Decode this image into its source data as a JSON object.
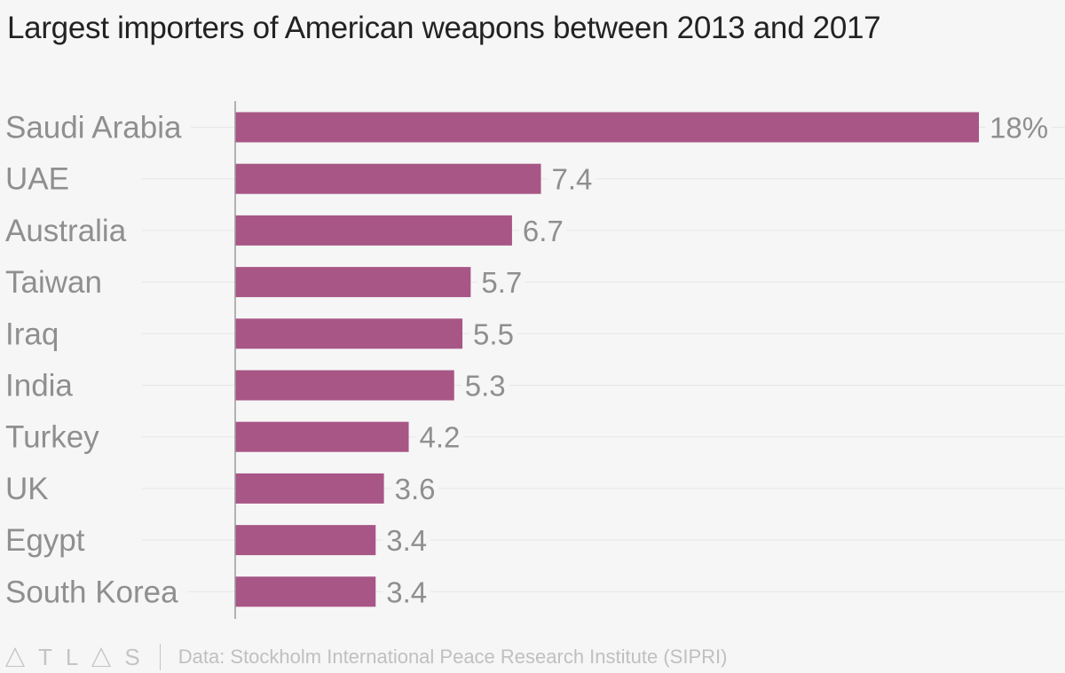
{
  "chart_data": {
    "type": "bar",
    "orientation": "horizontal",
    "title": "Largest importers of American weapons between 2013 and 2017",
    "categories": [
      "Saudi Arabia",
      "UAE",
      "Australia",
      "Taiwan",
      "Iraq",
      "India",
      "Turkey",
      "UK",
      "Egypt",
      "South Korea"
    ],
    "values": [
      18,
      7.4,
      6.7,
      5.7,
      5.5,
      5.3,
      4.2,
      3.6,
      3.4,
      3.4
    ],
    "value_labels": [
      "18%",
      "7.4",
      "6.7",
      "5.7",
      "5.5",
      "5.3",
      "4.2",
      "3.6",
      "3.4",
      "3.4"
    ],
    "xlim": [
      0,
      18
    ],
    "grid": true,
    "colors": {
      "bar": "#a85686",
      "gridline": "#e6e6e6",
      "axis": "#9a9a9a",
      "label": "#8f8f8f"
    }
  },
  "footer": {
    "logo_letters": [
      "A",
      "T",
      "L",
      "A",
      "S"
    ],
    "source": "Data: Stockholm International Peace Research Institute (SIPRI)"
  }
}
